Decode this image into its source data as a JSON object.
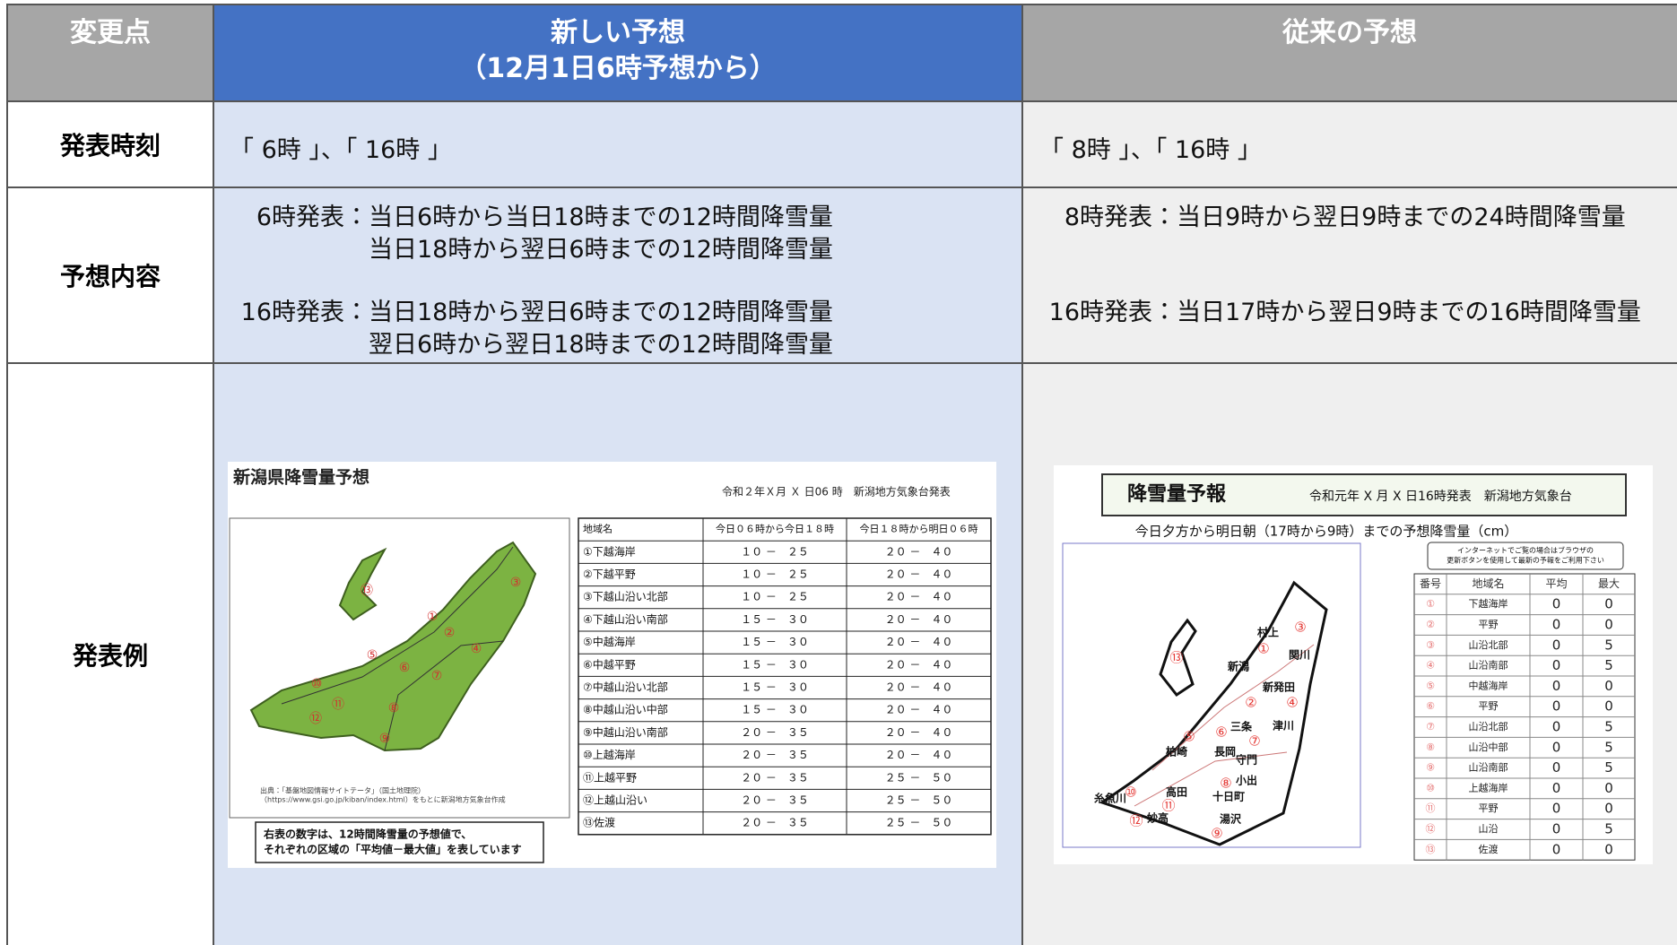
{
  "header": {
    "change_point": "変更点",
    "new_title": [
      "新しい予想",
      "（12月1日6時予想から）"
    ],
    "old_title": "従来の予想"
  },
  "rows": [
    {
      "label": "発表時刻",
      "new": "「 6時 」、「 16時 」",
      "old": "「 8時 」、「 16時 」"
    },
    {
      "label": "予想内容",
      "new": [
        {
          "prefix": "6時発表：",
          "lines": [
            "当日6時から当日18時までの12時間降雪量",
            "当日18時から翌日6時までの12時間降雪量"
          ]
        },
        {
          "prefix": "16時発表：",
          "lines": [
            "当日18時から翌日6時までの12時間降雪量",
            "翌日6時から翌日18時までの12時間降雪量"
          ]
        }
      ],
      "old": [
        {
          "prefix": "8時発表：",
          "lines": [
            "当日9時から翌日9時までの24時間降雪量"
          ]
        },
        {
          "prefix": "16時発表：",
          "lines": [
            "当日17時から翌日9時までの16時間降雪量"
          ]
        }
      ]
    },
    {
      "label": "発表例"
    }
  ],
  "new_example": {
    "title": "新潟県降雪量予想",
    "issued": "令和２年Ｘ月 Ｘ 日06 時　新潟地方気象台発表",
    "table": {
      "header": [
        "地域名",
        "今日０６時から今日１８時",
        "今日１８時から明日０６時"
      ],
      "rows": [
        [
          "①下越海岸",
          "１０ －　２５",
          "２０ －　４０"
        ],
        [
          "②下越平野",
          "１０ －　２５",
          "２０ －　４０"
        ],
        [
          "③下越山沿い北部",
          "１０ －　２５",
          "２０ －　４０"
        ],
        [
          "④下越山沿い南部",
          "１５ －　３０",
          "２０ －　４０"
        ],
        [
          "⑤中越海岸",
          "１５ －　３０",
          "２０ －　４０"
        ],
        [
          "⑥中越平野",
          "１５ －　３０",
          "２０ －　４０"
        ],
        [
          "⑦中越山沿い北部",
          "１５ －　３０",
          "２０ －　４０"
        ],
        [
          "⑧中越山沿い中部",
          "１５ －　３０",
          "２０ －　４０"
        ],
        [
          "⑨中越山沿い南部",
          "２０ －　３５",
          "２０ －　４０"
        ],
        [
          "⑩上越海岸",
          "２０ －　３５",
          "２０ －　４０"
        ],
        [
          "⑪上越平野",
          "２０ －　３５",
          "２５ －　５０"
        ],
        [
          "⑫上越山沿い",
          "２０ －　３５",
          "２５ －　５０"
        ],
        [
          "⑬佐渡",
          "２０ －　３５",
          "２５ －　５０"
        ]
      ]
    },
    "note": [
      "右表の数字は、12時間降雪量の予想値で、",
      "それぞれの区域の「平均値－最大値」を表しています"
    ],
    "source": [
      "出典：「基盤地図情報サイトテータ」（国土地理院）",
      "（https://www.gsi.go.jp/kiban/index.html）をもとに新潟地方気象台作成"
    ],
    "map_labels": [
      "①",
      "②",
      "③",
      "④",
      "⑤",
      "⑥",
      "⑦",
      "⑧",
      "⑨",
      "⑩",
      "⑪",
      "⑫",
      "⑬"
    ]
  },
  "old_example": {
    "title": "降雪量予報",
    "issued": "令和元年 X 月 X 日16時発表　新潟地方気象台",
    "subtitle": "今日夕方から明日朝（17時から9時）までの予想降雪量（cm）",
    "notice": [
      "インターネットでご覧の場合はブラウザの",
      "更新ボタンを使用して最新の予報をご利用下さい"
    ],
    "table": {
      "header": [
        "番号",
        "地域名",
        "平均",
        "最大"
      ],
      "rows": [
        [
          "①",
          "下越海岸",
          "0",
          "0"
        ],
        [
          "②",
          "平野",
          "0",
          "0"
        ],
        [
          "③",
          "山沿北部",
          "0",
          "5"
        ],
        [
          "④",
          "山沿南部",
          "0",
          "5"
        ],
        [
          "⑤",
          "中越海岸",
          "0",
          "0"
        ],
        [
          "⑥",
          "平野",
          "0",
          "0"
        ],
        [
          "⑦",
          "山沿北部",
          "0",
          "5"
        ],
        [
          "⑧",
          "山沿中部",
          "0",
          "5"
        ],
        [
          "⑨",
          "山沿南部",
          "0",
          "5"
        ],
        [
          "⑩",
          "上越海岸",
          "0",
          "0"
        ],
        [
          "⑪",
          "平野",
          "0",
          "0"
        ],
        [
          "⑫",
          "山沿",
          "0",
          "5"
        ],
        [
          "⑬",
          "佐渡",
          "0",
          "0"
        ]
      ]
    },
    "cities": [
      "村上",
      "新潟",
      "新発田",
      "関川",
      "三条",
      "津川",
      "柏崎",
      "長岡",
      "守門",
      "小出",
      "十日町",
      "高田",
      "糸魚川",
      "妙高",
      "湯沢"
    ],
    "map_labels": [
      "①",
      "②",
      "③",
      "④",
      "⑤",
      "⑥",
      "⑦",
      "⑧",
      "⑨",
      "⑩",
      "⑪",
      "⑫",
      "⑬"
    ]
  }
}
